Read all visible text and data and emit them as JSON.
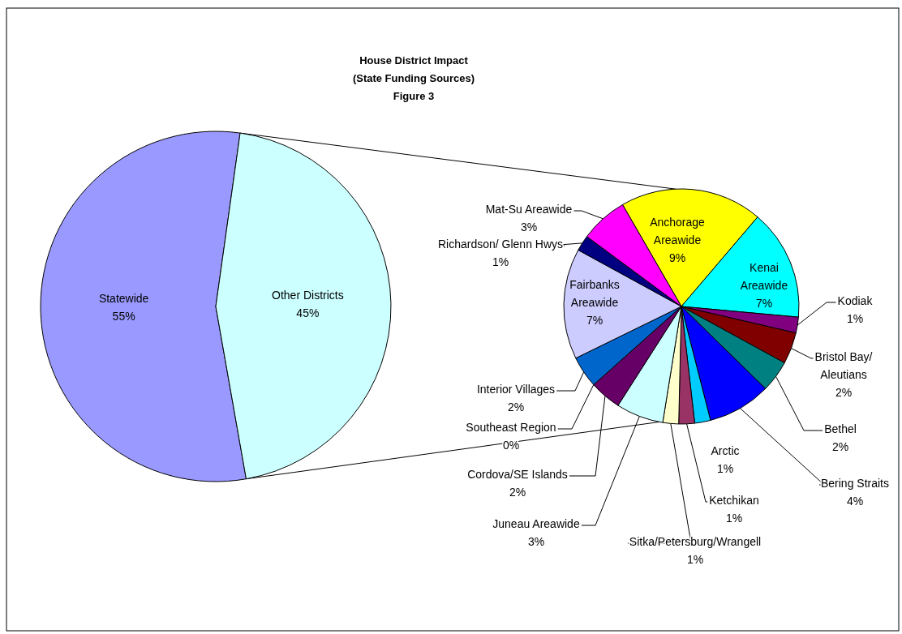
{
  "chart_data": [
    {
      "type": "pie",
      "title": "House District Impact\n(State Funding Sources)\nFigure 3",
      "categories": [
        "Statewide",
        "Other Districts"
      ],
      "values": [
        55,
        45
      ],
      "colors": [
        "#9999ff",
        "#ccffff"
      ],
      "value_labels": [
        "55%",
        "45%"
      ]
    },
    {
      "type": "pie",
      "categories": [
        "Anchorage Areawide",
        "Kenai Areawide",
        "Kodiak",
        "Bristol Bay/ Aleutians",
        "Bethel",
        "Bering Straits",
        "Arctic",
        "Ketchikan",
        "Sitka/Petersburg/Wrangell",
        "Juneau Areawide",
        "Cordova/SE Islands",
        "Southeast Region",
        "Interior Villages",
        "Fairbanks Areawide",
        "Richardson/ Glenn Hwys",
        "Mat-Su Areawide"
      ],
      "values": [
        9,
        7,
        1,
        2,
        2,
        4,
        1,
        1,
        1,
        3,
        2,
        0,
        2,
        7,
        1,
        3
      ],
      "colors": [
        "#ffff00",
        "#00ffff",
        "#800080",
        "#800000",
        "#008080",
        "#0000ff",
        "#00ccff",
        "#993366",
        "#ffffcc",
        "#ccffff",
        "#660066",
        "#ff8080",
        "#0066cc",
        "#ccccff",
        "#000080",
        "#ff00ff"
      ],
      "value_labels": [
        "9%",
        "7%",
        "1%",
        "2%",
        "2%",
        "4%",
        "1%",
        "1%",
        "1%",
        "3%",
        "2%",
        "0%",
        "2%",
        "7%",
        "1%",
        "3%"
      ]
    }
  ]
}
